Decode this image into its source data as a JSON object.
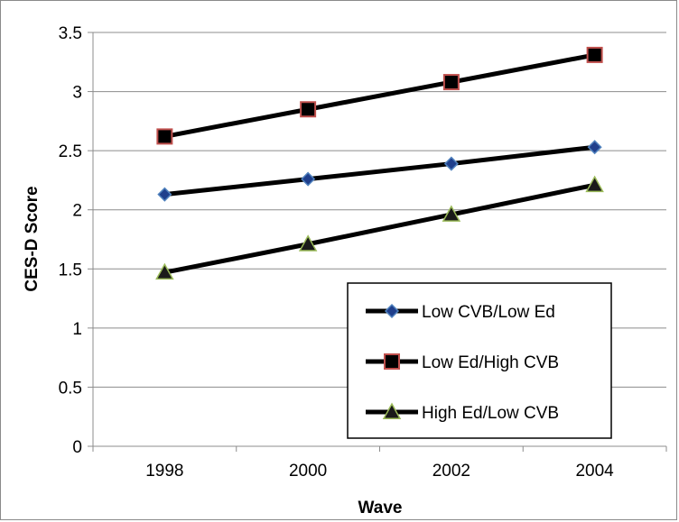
{
  "chart_data": {
    "type": "line",
    "title": "",
    "xlabel": "Wave",
    "ylabel": "CES-D Score",
    "categories": [
      "1998",
      "2000",
      "2002",
      "2004"
    ],
    "ylim": [
      0,
      3.5
    ],
    "yticks": [
      "0",
      "0.5",
      "1",
      "1.5",
      "2",
      "2.5",
      "3",
      "3.5"
    ],
    "grid": "horizontal",
    "legend": "bottom-right",
    "series": [
      {
        "name": "Low CVB/Low Ed",
        "values": [
          2.13,
          2.26,
          2.39,
          2.53
        ],
        "marker": "diamond",
        "marker_color": "#1f3f8c",
        "marker_edge": "#4f81bd"
      },
      {
        "name": "Low Ed/High CVB",
        "values": [
          2.62,
          2.85,
          3.08,
          3.31
        ],
        "marker": "square",
        "marker_color": "#000000",
        "marker_edge": "#c0504d"
      },
      {
        "name": "High Ed/Low CVB",
        "values": [
          1.47,
          1.71,
          1.96,
          2.21
        ],
        "marker": "triangle",
        "marker_color": "#1a1a1a",
        "marker_edge": "#9bbb59"
      }
    ],
    "line_color": "#000000"
  }
}
